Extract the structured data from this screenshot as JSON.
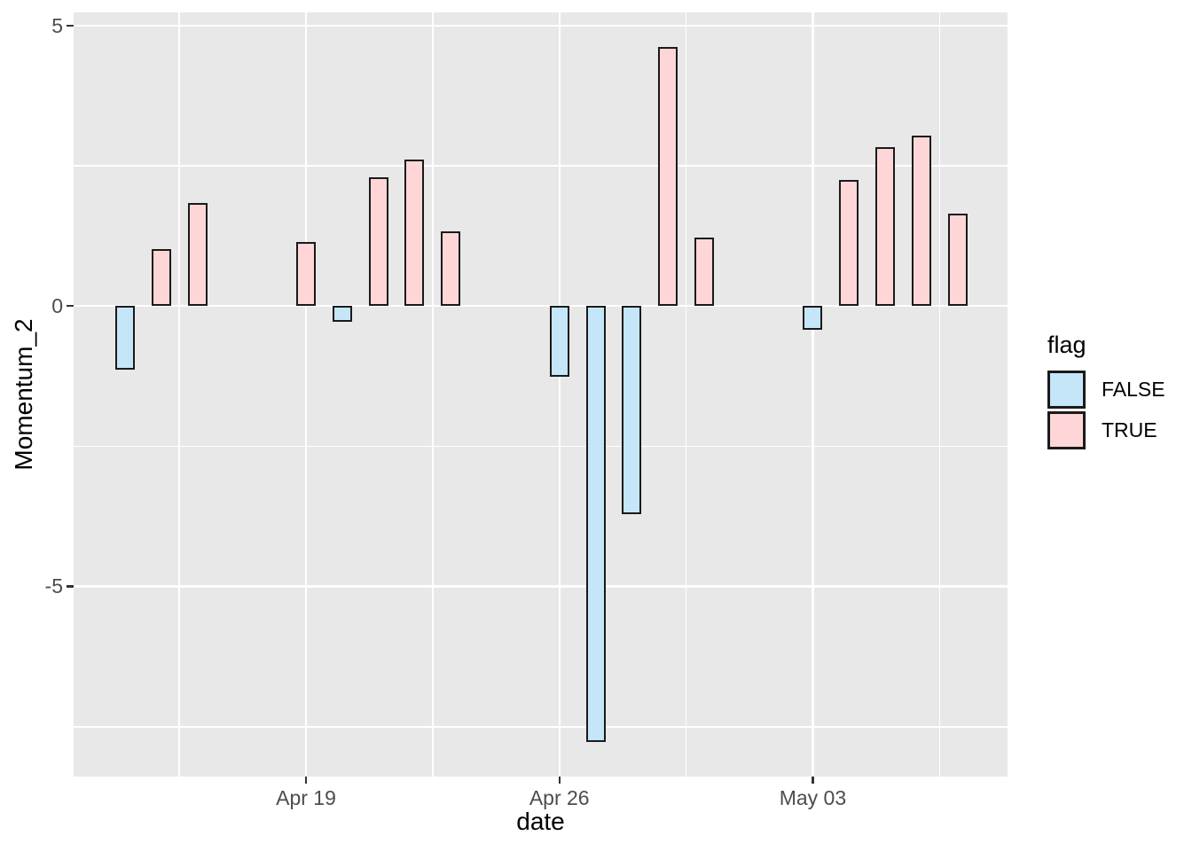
{
  "figure": {
    "background": "#FFFFFF",
    "panel_background": "#E8E8E8",
    "grid_color": "#FFFFFF",
    "axis_text_color": "#4D4D4D",
    "axis_title_color": "#000000",
    "tick_color": "#333333",
    "bar_stroke": "#1A1A1A"
  },
  "chart_data": {
    "type": "bar",
    "title": "",
    "xlabel": "date",
    "ylabel": "Momentum_2",
    "grid": "on",
    "legend": {
      "title": "flag",
      "position": "right",
      "entries": [
        {
          "label": "FALSE",
          "color": "#C4E6F8"
        },
        {
          "label": "TRUE",
          "color": "#FFD6D8"
        }
      ]
    },
    "x_origin": "2021-04-19T00:00:00Z",
    "xlim_days": [
      -6.42,
      19.38
    ],
    "ylim": [
      -8.39,
      5.23
    ],
    "x_ticks": [
      {
        "date": "2021-04-19",
        "label": "Apr 19"
      },
      {
        "date": "2021-04-26",
        "label": "Apr 26"
      },
      {
        "date": "2021-05-03",
        "label": "May 03"
      }
    ],
    "x_minor_breaks": [
      "2021-04-15T12:00:00Z",
      "2021-04-22T12:00:00Z",
      "2021-04-29T12:00:00Z",
      "2021-05-06T12:00:00Z"
    ],
    "y_ticks": [
      {
        "value": 5,
        "label": "5"
      },
      {
        "value": 0,
        "label": "0"
      },
      {
        "value": -5,
        "label": "-5"
      }
    ],
    "y_minor_breaks": [
      2.5,
      -2.5,
      -7.5
    ],
    "points": [
      {
        "date": "2021-04-14",
        "value": -1.13,
        "flag": "FALSE"
      },
      {
        "date": "2021-04-15",
        "value": 1.01,
        "flag": "TRUE"
      },
      {
        "date": "2021-04-16",
        "value": 1.83,
        "flag": "TRUE"
      },
      {
        "date": "2021-04-19",
        "value": 1.13,
        "flag": "TRUE"
      },
      {
        "date": "2021-04-20",
        "value": -0.29,
        "flag": "FALSE"
      },
      {
        "date": "2021-04-21",
        "value": 2.29,
        "flag": "TRUE"
      },
      {
        "date": "2021-04-22",
        "value": 2.61,
        "flag": "TRUE"
      },
      {
        "date": "2021-04-23",
        "value": 1.32,
        "flag": "TRUE"
      },
      {
        "date": "2021-04-26",
        "value": -1.26,
        "flag": "FALSE"
      },
      {
        "date": "2021-04-27",
        "value": -7.77,
        "flag": "FALSE"
      },
      {
        "date": "2021-04-28",
        "value": -3.71,
        "flag": "FALSE"
      },
      {
        "date": "2021-04-29",
        "value": 4.61,
        "flag": "TRUE"
      },
      {
        "date": "2021-04-30",
        "value": 1.21,
        "flag": "TRUE"
      },
      {
        "date": "2021-05-03",
        "value": -0.43,
        "flag": "FALSE"
      },
      {
        "date": "2021-05-04",
        "value": 2.24,
        "flag": "TRUE"
      },
      {
        "date": "2021-05-05",
        "value": 2.83,
        "flag": "TRUE"
      },
      {
        "date": "2021-05-06",
        "value": 3.03,
        "flag": "TRUE"
      },
      {
        "date": "2021-05-07",
        "value": 1.64,
        "flag": "TRUE"
      }
    ]
  }
}
